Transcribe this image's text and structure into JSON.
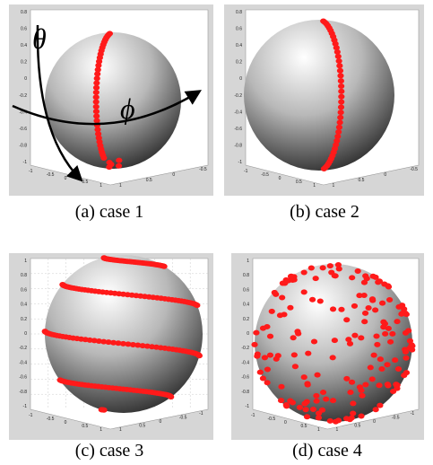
{
  "symbols": {
    "theta": "θ",
    "phi": "ϕ"
  },
  "panels": [
    {
      "caption": "(a) case 1",
      "y_ticks": [
        "0.8",
        "0.6",
        "0.4",
        "0.2",
        "0",
        "-0.2",
        "-0.4",
        "-0.6",
        "-0.8",
        "-1"
      ],
      "x_ticks": [
        "-1",
        "-0.5",
        "0",
        "0.5",
        "1"
      ],
      "z_ticks": [
        "1",
        "0.5",
        "0",
        "-0.5"
      ]
    },
    {
      "caption": "(b) case 2",
      "y_ticks": [
        "0.8",
        "0.6",
        "0.4",
        "0.2",
        "0",
        "-0.2",
        "-0.4",
        "-0.6",
        "-0.8",
        "-1"
      ],
      "x_ticks": [
        "-1",
        "-0.5",
        "0",
        "0.5",
        "1"
      ],
      "z_ticks": [
        "1",
        "0.5",
        "0",
        "-0.5"
      ]
    },
    {
      "caption": "(c) case 3",
      "y_ticks": [
        "1",
        "0.8",
        "0.6",
        "0.4",
        "0.2",
        "0",
        "-0.2",
        "-0.4",
        "-0.6",
        "-0.8",
        "-1"
      ],
      "x_ticks": [
        "-1",
        "-0.5",
        "0",
        "0.5",
        "1"
      ],
      "z_ticks": [
        "1",
        "0.5",
        "0",
        "-0.5",
        "-1"
      ]
    },
    {
      "caption": "(d) case 4",
      "y_ticks": [
        "1",
        "0.8",
        "0.6",
        "0.4",
        "0.2",
        "0",
        "-0.2",
        "-0.4",
        "-0.6",
        "-0.8",
        "-1"
      ],
      "x_ticks": [
        "-1",
        "-0.5",
        "0",
        "0.5",
        "1"
      ],
      "z_ticks": [
        "1",
        "0.5",
        "0",
        "-0.5",
        "-1"
      ]
    }
  ]
}
